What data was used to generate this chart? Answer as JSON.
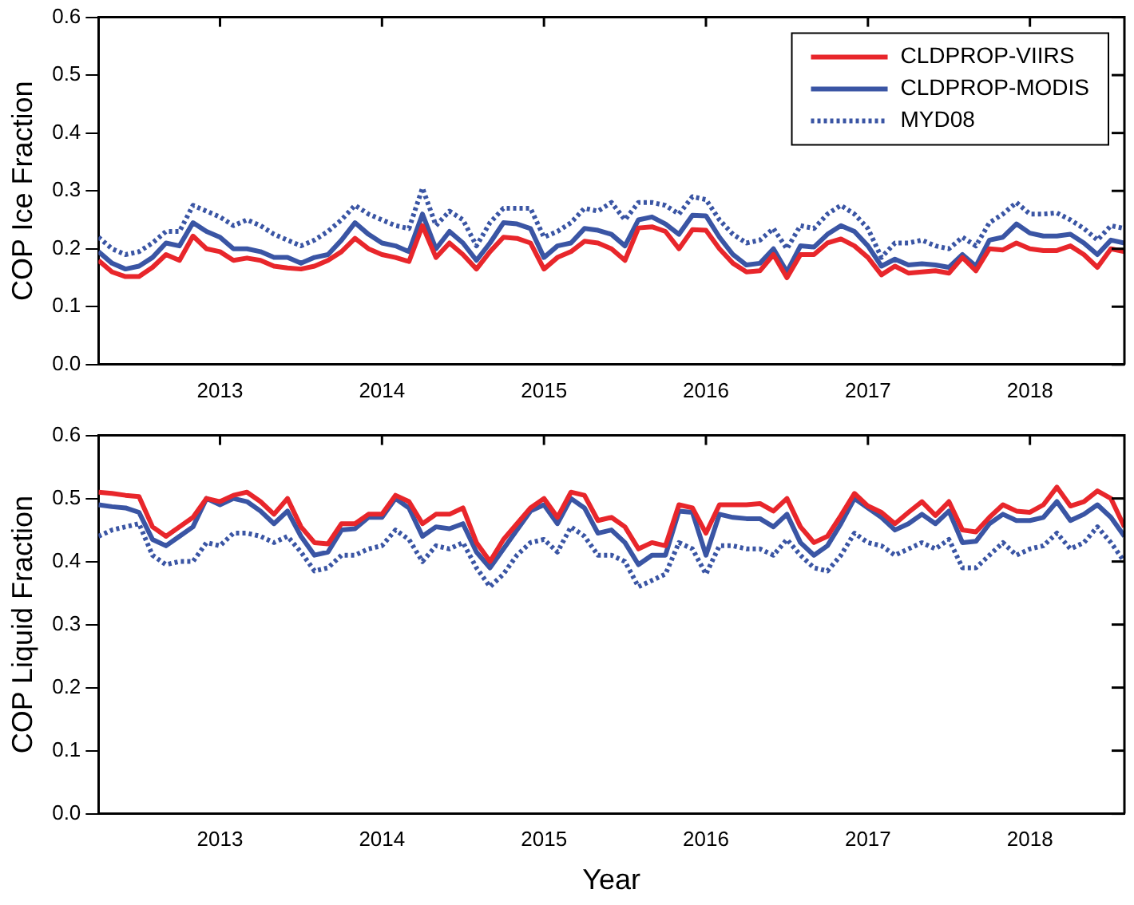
{
  "chart_data": [
    {
      "type": "line",
      "ylabel": "COP Ice Fraction",
      "legend": "top right",
      "x": [
        "2012-04",
        "2012-05",
        "2012-06",
        "2012-07",
        "2012-08",
        "2012-09",
        "2012-10",
        "2012-11",
        "2012-12",
        "2013-01",
        "2013-02",
        "2013-03",
        "2013-04",
        "2013-05",
        "2013-06",
        "2013-07",
        "2013-08",
        "2013-09",
        "2013-10",
        "2013-11",
        "2013-12",
        "2014-01",
        "2014-02",
        "2014-03",
        "2014-04",
        "2014-05",
        "2014-06",
        "2014-07",
        "2014-08",
        "2014-09",
        "2014-10",
        "2014-11",
        "2014-12",
        "2015-01",
        "2015-02",
        "2015-03",
        "2015-04",
        "2015-05",
        "2015-06",
        "2015-07",
        "2015-08",
        "2015-09",
        "2015-10",
        "2015-11",
        "2015-12",
        "2016-01",
        "2016-02",
        "2016-03",
        "2016-04",
        "2016-05",
        "2016-06",
        "2016-07",
        "2016-08",
        "2016-09",
        "2016-10",
        "2016-11",
        "2016-12",
        "2017-01",
        "2017-02",
        "2017-03",
        "2017-04",
        "2017-05",
        "2017-06",
        "2017-07",
        "2017-08",
        "2017-09",
        "2017-10",
        "2017-11",
        "2017-12",
        "2018-01",
        "2018-02",
        "2018-03",
        "2018-04",
        "2018-05",
        "2018-06",
        "2018-07",
        "2018-08"
      ],
      "xlim": [
        "2012-04",
        "2018-08"
      ],
      "xticks": [
        {
          "value": "2013",
          "label": "2013"
        },
        {
          "value": "2014",
          "label": "2014"
        },
        {
          "value": "2015",
          "label": "2015"
        },
        {
          "value": "2016",
          "label": "2016"
        },
        {
          "value": "2017",
          "label": "2017"
        },
        {
          "value": "2018",
          "label": "2018"
        }
      ],
      "ylim": [
        0,
        0.6
      ],
      "yticks": [
        {
          "value": 0,
          "label": "0.0"
        },
        {
          "value": 0.1,
          "label": "0.1"
        },
        {
          "value": 0.2,
          "label": "0.2"
        },
        {
          "value": 0.3,
          "label": "0.3"
        },
        {
          "value": 0.4,
          "label": "0.4"
        },
        {
          "value": 0.5,
          "label": "0.5"
        },
        {
          "value": 0.6,
          "label": "0.6"
        }
      ],
      "series": [
        {
          "name": "CLDPROP-VIIRS",
          "color": "#e8262b",
          "line_style": "solid",
          "values": [
            0.18,
            0.16,
            0.152,
            0.152,
            0.168,
            0.19,
            0.18,
            0.222,
            0.2,
            0.195,
            0.18,
            0.184,
            0.18,
            0.17,
            0.167,
            0.165,
            0.17,
            0.18,
            0.195,
            0.218,
            0.2,
            0.19,
            0.185,
            0.178,
            0.24,
            0.185,
            0.21,
            0.19,
            0.165,
            0.195,
            0.22,
            0.218,
            0.21,
            0.165,
            0.185,
            0.195,
            0.213,
            0.21,
            0.2,
            0.18,
            0.236,
            0.238,
            0.23,
            0.2,
            0.233,
            0.232,
            0.2,
            0.175,
            0.16,
            0.162,
            0.19,
            0.15,
            0.19,
            0.19,
            0.21,
            0.217,
            0.205,
            0.185,
            0.155,
            0.17,
            0.158,
            0.16,
            0.162,
            0.158,
            0.185,
            0.162,
            0.2,
            0.198,
            0.21,
            0.2,
            0.197,
            0.197,
            0.205,
            0.19,
            0.168,
            0.2,
            0.195
          ]
        },
        {
          "name": "CLDPROP-MODIS",
          "color": "#3a55a4",
          "line_style": "solid",
          "values": [
            0.195,
            0.175,
            0.165,
            0.17,
            0.185,
            0.21,
            0.205,
            0.245,
            0.23,
            0.22,
            0.2,
            0.2,
            0.195,
            0.185,
            0.185,
            0.175,
            0.185,
            0.19,
            0.215,
            0.245,
            0.225,
            0.21,
            0.205,
            0.195,
            0.26,
            0.2,
            0.23,
            0.21,
            0.18,
            0.21,
            0.245,
            0.243,
            0.235,
            0.185,
            0.205,
            0.21,
            0.235,
            0.232,
            0.225,
            0.205,
            0.25,
            0.255,
            0.243,
            0.225,
            0.258,
            0.257,
            0.22,
            0.19,
            0.172,
            0.175,
            0.2,
            0.16,
            0.205,
            0.203,
            0.225,
            0.24,
            0.23,
            0.205,
            0.17,
            0.182,
            0.172,
            0.174,
            0.172,
            0.168,
            0.19,
            0.17,
            0.215,
            0.22,
            0.243,
            0.227,
            0.222,
            0.222,
            0.225,
            0.21,
            0.19,
            0.215,
            0.21
          ]
        },
        {
          "name": "MYD08",
          "color": "#3a55a4",
          "line_style": "dotted",
          "values": [
            0.22,
            0.2,
            0.19,
            0.195,
            0.21,
            0.23,
            0.23,
            0.275,
            0.265,
            0.255,
            0.24,
            0.25,
            0.24,
            0.225,
            0.215,
            0.205,
            0.215,
            0.23,
            0.25,
            0.275,
            0.26,
            0.25,
            0.24,
            0.235,
            0.305,
            0.24,
            0.265,
            0.25,
            0.205,
            0.245,
            0.27,
            0.27,
            0.27,
            0.22,
            0.23,
            0.245,
            0.27,
            0.265,
            0.28,
            0.25,
            0.28,
            0.28,
            0.275,
            0.26,
            0.29,
            0.285,
            0.25,
            0.225,
            0.21,
            0.215,
            0.235,
            0.2,
            0.24,
            0.235,
            0.26,
            0.275,
            0.26,
            0.235,
            0.185,
            0.21,
            0.21,
            0.215,
            0.205,
            0.2,
            0.22,
            0.205,
            0.245,
            0.26,
            0.28,
            0.26,
            0.26,
            0.262,
            0.25,
            0.235,
            0.215,
            0.24,
            0.235
          ]
        }
      ]
    },
    {
      "type": "line",
      "ylabel": "COP Liquid Fraction",
      "xlabel": "Year",
      "x": [
        "2012-04",
        "2012-05",
        "2012-06",
        "2012-07",
        "2012-08",
        "2012-09",
        "2012-10",
        "2012-11",
        "2012-12",
        "2013-01",
        "2013-02",
        "2013-03",
        "2013-04",
        "2013-05",
        "2013-06",
        "2013-07",
        "2013-08",
        "2013-09",
        "2013-10",
        "2013-11",
        "2013-12",
        "2014-01",
        "2014-02",
        "2014-03",
        "2014-04",
        "2014-05",
        "2014-06",
        "2014-07",
        "2014-08",
        "2014-09",
        "2014-10",
        "2014-11",
        "2014-12",
        "2015-01",
        "2015-02",
        "2015-03",
        "2015-04",
        "2015-05",
        "2015-06",
        "2015-07",
        "2015-08",
        "2015-09",
        "2015-10",
        "2015-11",
        "2015-12",
        "2016-01",
        "2016-02",
        "2016-03",
        "2016-04",
        "2016-05",
        "2016-06",
        "2016-07",
        "2016-08",
        "2016-09",
        "2016-10",
        "2016-11",
        "2016-12",
        "2017-01",
        "2017-02",
        "2017-03",
        "2017-04",
        "2017-05",
        "2017-06",
        "2017-07",
        "2017-08",
        "2017-09",
        "2017-10",
        "2017-11",
        "2017-12",
        "2018-01",
        "2018-02",
        "2018-03",
        "2018-04",
        "2018-05",
        "2018-06",
        "2018-07",
        "2018-08"
      ],
      "xlim": [
        "2012-04",
        "2018-08"
      ],
      "xticks": [
        {
          "value": "2013",
          "label": "2013"
        },
        {
          "value": "2014",
          "label": "2014"
        },
        {
          "value": "2015",
          "label": "2015"
        },
        {
          "value": "2016",
          "label": "2016"
        },
        {
          "value": "2017",
          "label": "2017"
        },
        {
          "value": "2018",
          "label": "2018"
        }
      ],
      "ylim": [
        0,
        0.6
      ],
      "yticks": [
        {
          "value": 0,
          "label": "0.0"
        },
        {
          "value": 0.1,
          "label": "0.1"
        },
        {
          "value": 0.2,
          "label": "0.2"
        },
        {
          "value": 0.3,
          "label": "0.3"
        },
        {
          "value": 0.4,
          "label": "0.4"
        },
        {
          "value": 0.5,
          "label": "0.5"
        },
        {
          "value": 0.6,
          "label": "0.6"
        }
      ],
      "series": [
        {
          "color": "#e8262b",
          "line_style": "solid",
          "values": [
            0.51,
            0.508,
            0.505,
            0.503,
            0.455,
            0.44,
            0.455,
            0.47,
            0.5,
            0.495,
            0.505,
            0.51,
            0.495,
            0.475,
            0.5,
            0.455,
            0.43,
            0.428,
            0.46,
            0.46,
            0.475,
            0.475,
            0.505,
            0.495,
            0.46,
            0.475,
            0.475,
            0.485,
            0.43,
            0.4,
            0.435,
            0.46,
            0.485,
            0.5,
            0.47,
            0.51,
            0.505,
            0.465,
            0.47,
            0.455,
            0.42,
            0.43,
            0.425,
            0.49,
            0.485,
            0.445,
            0.49,
            0.49,
            0.49,
            0.492,
            0.48,
            0.5,
            0.455,
            0.43,
            0.44,
            0.473,
            0.508,
            0.488,
            0.478,
            0.46,
            0.478,
            0.495,
            0.473,
            0.495,
            0.45,
            0.447,
            0.47,
            0.49,
            0.48,
            0.478,
            0.49,
            0.518,
            0.488,
            0.495,
            0.512,
            0.5,
            0.455
          ]
        },
        {
          "color": "#3a55a4",
          "line_style": "solid",
          "values": [
            0.49,
            0.487,
            0.485,
            0.478,
            0.435,
            0.425,
            0.44,
            0.455,
            0.5,
            0.49,
            0.5,
            0.495,
            0.48,
            0.46,
            0.48,
            0.44,
            0.41,
            0.415,
            0.45,
            0.452,
            0.47,
            0.47,
            0.5,
            0.485,
            0.44,
            0.455,
            0.452,
            0.46,
            0.415,
            0.39,
            0.42,
            0.45,
            0.48,
            0.49,
            0.46,
            0.5,
            0.485,
            0.445,
            0.45,
            0.43,
            0.395,
            0.41,
            0.41,
            0.48,
            0.478,
            0.41,
            0.475,
            0.47,
            0.468,
            0.468,
            0.455,
            0.475,
            0.43,
            0.41,
            0.425,
            0.46,
            0.5,
            0.485,
            0.47,
            0.45,
            0.46,
            0.475,
            0.46,
            0.48,
            0.43,
            0.432,
            0.46,
            0.475,
            0.465,
            0.465,
            0.47,
            0.495,
            0.465,
            0.475,
            0.49,
            0.47,
            0.44
          ]
        },
        {
          "color": "#3a55a4",
          "line_style": "dotted",
          "values": [
            0.44,
            0.45,
            0.455,
            0.46,
            0.41,
            0.395,
            0.4,
            0.4,
            0.43,
            0.425,
            0.445,
            0.445,
            0.44,
            0.43,
            0.44,
            0.415,
            0.385,
            0.39,
            0.41,
            0.41,
            0.42,
            0.425,
            0.45,
            0.435,
            0.4,
            0.425,
            0.42,
            0.43,
            0.39,
            0.36,
            0.38,
            0.41,
            0.43,
            0.435,
            0.415,
            0.455,
            0.44,
            0.41,
            0.41,
            0.4,
            0.36,
            0.37,
            0.38,
            0.43,
            0.42,
            0.38,
            0.425,
            0.425,
            0.42,
            0.42,
            0.41,
            0.435,
            0.41,
            0.39,
            0.385,
            0.41,
            0.445,
            0.43,
            0.425,
            0.41,
            0.42,
            0.43,
            0.42,
            0.435,
            0.39,
            0.39,
            0.41,
            0.43,
            0.41,
            0.42,
            0.425,
            0.445,
            0.42,
            0.43,
            0.455,
            0.43,
            0.4
          ]
        }
      ]
    }
  ]
}
